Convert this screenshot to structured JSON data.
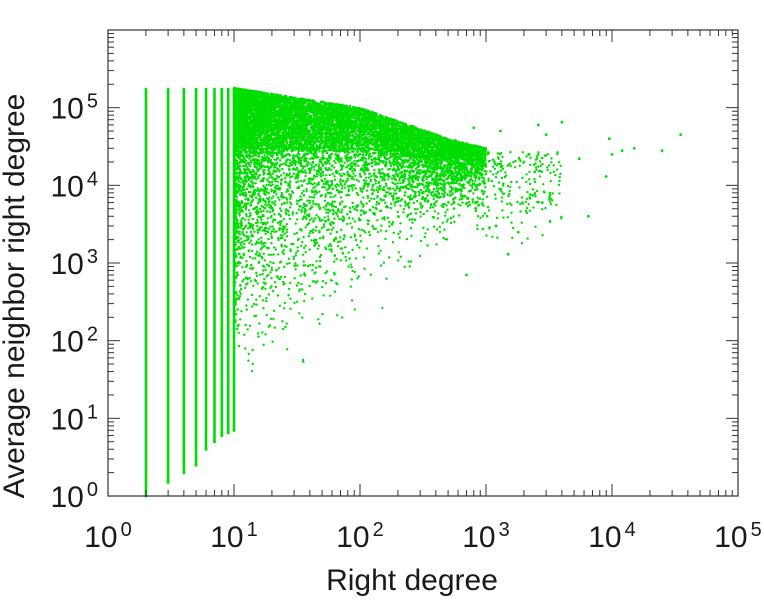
{
  "chart_data": {
    "type": "scatter",
    "title": "",
    "xlabel": "Right degree",
    "ylabel": "Average neighbor right degree",
    "xscale": "log",
    "yscale": "log",
    "xlim": [
      1,
      100000
    ],
    "ylim": [
      1,
      1000000
    ],
    "grid": false,
    "marker_color": "#00dd00",
    "x_ticks": [
      {
        "base": "10",
        "exp": "0",
        "value": 1
      },
      {
        "base": "10",
        "exp": "1",
        "value": 10
      },
      {
        "base": "10",
        "exp": "2",
        "value": 100
      },
      {
        "base": "10",
        "exp": "3",
        "value": 1000
      },
      {
        "base": "10",
        "exp": "4",
        "value": 10000
      },
      {
        "base": "10",
        "exp": "5",
        "value": 100000
      }
    ],
    "y_ticks": [
      {
        "base": "10",
        "exp": "0",
        "value": 1
      },
      {
        "base": "10",
        "exp": "1",
        "value": 10
      },
      {
        "base": "10",
        "exp": "2",
        "value": 100
      },
      {
        "base": "10",
        "exp": "3",
        "value": 1000
      },
      {
        "base": "10",
        "exp": "4",
        "value": 10000
      },
      {
        "base": "10",
        "exp": "5",
        "value": 100000
      }
    ],
    "integer_degree_columns": [
      {
        "x": 2,
        "ymin": 1,
        "ymax": 180000
      },
      {
        "x": 3,
        "ymin": 1.5,
        "ymax": 180000
      },
      {
        "x": 4,
        "ymin": 2,
        "ymax": 180000
      },
      {
        "x": 5,
        "ymin": 2.5,
        "ymax": 180000
      },
      {
        "x": 6,
        "ymin": 4,
        "ymax": 180000
      },
      {
        "x": 7,
        "ymin": 5,
        "ymax": 180000
      },
      {
        "x": 8,
        "ymin": 6,
        "ymax": 180000
      },
      {
        "x": 9,
        "ymin": 6.5,
        "ymax": 180000
      },
      {
        "x": 10,
        "ymin": 7,
        "ymax": 180000
      }
    ],
    "point_cloud": {
      "x_range": [
        10,
        1000
      ],
      "upper_envelope": [
        [
          10,
          180000
        ],
        [
          100,
          100000
        ],
        [
          500,
          40000
        ],
        [
          1000,
          30000
        ]
      ],
      "lower_envelope": [
        [
          10,
          8
        ],
        [
          100,
          80
        ],
        [
          500,
          1000
        ],
        [
          1000,
          10000
        ]
      ]
    },
    "outliers": [
      [
        2200,
        25000
      ],
      [
        2600,
        60000
      ],
      [
        3000,
        45000
      ],
      [
        4000,
        65000
      ],
      [
        5500,
        22000
      ],
      [
        6500,
        4000
      ],
      [
        9000,
        13000
      ],
      [
        9500,
        40000
      ],
      [
        10000,
        25000
      ],
      [
        12000,
        28000
      ],
      [
        15000,
        30000
      ],
      [
        25000,
        28000
      ],
      [
        35000,
        45000
      ],
      [
        1500,
        1300
      ],
      [
        1200,
        3000
      ],
      [
        700,
        700
      ],
      [
        1800,
        2500
      ],
      [
        2800,
        6000
      ],
      [
        1300,
        50000
      ],
      [
        800,
        55000
      ]
    ]
  }
}
